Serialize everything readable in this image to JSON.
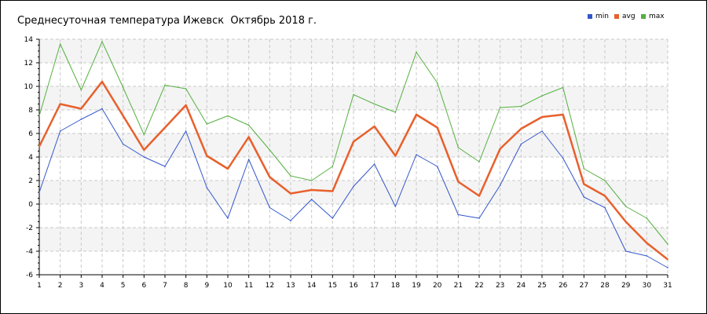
{
  "chart_data": {
    "type": "line",
    "title": "Среднесуточная температура Ижевск  Октябрь 2018 г.",
    "xlabel": "",
    "ylabel": "",
    "x": [
      1,
      2,
      3,
      4,
      5,
      6,
      7,
      8,
      9,
      10,
      11,
      12,
      13,
      14,
      15,
      16,
      17,
      18,
      19,
      20,
      21,
      22,
      23,
      24,
      25,
      26,
      27,
      28,
      29,
      30,
      31
    ],
    "ylim": [
      -6,
      14
    ],
    "yticks": [
      -6,
      -4,
      -2,
      0,
      2,
      4,
      6,
      8,
      10,
      12,
      14
    ],
    "grid": true,
    "legend_position": "top-right",
    "series": [
      {
        "name": "min",
        "color": "#3355cc",
        "values": [
          1.0,
          6.2,
          7.2,
          8.1,
          5.1,
          4.0,
          3.2,
          6.2,
          1.4,
          -1.2,
          3.8,
          -0.3,
          -1.4,
          0.4,
          -1.2,
          1.5,
          3.4,
          -0.2,
          4.2,
          3.2,
          -0.9,
          -1.2,
          1.6,
          5.1,
          6.2,
          3.9,
          0.6,
          -0.3,
          -4.0,
          -4.4,
          -5.4
        ]
      },
      {
        "name": "avg",
        "color": "#e8602c",
        "values": [
          4.9,
          8.5,
          8.1,
          10.4,
          7.5,
          4.6,
          6.5,
          8.4,
          4.1,
          3.0,
          5.7,
          2.3,
          0.9,
          1.2,
          1.1,
          5.3,
          6.6,
          4.1,
          7.6,
          6.5,
          1.9,
          0.7,
          4.7,
          6.4,
          7.4,
          7.6,
          1.7,
          0.7,
          -1.5,
          -3.3,
          -4.7
        ]
      },
      {
        "name": "max",
        "color": "#55b040",
        "values": [
          7.5,
          13.6,
          9.7,
          13.8,
          9.9,
          5.9,
          10.1,
          9.8,
          6.8,
          7.5,
          6.7,
          4.6,
          2.4,
          2.0,
          3.2,
          9.3,
          8.5,
          7.8,
          12.9,
          10.3,
          4.8,
          3.6,
          8.2,
          8.3,
          9.2,
          9.9,
          3.0,
          2.0,
          -0.2,
          -1.2,
          -3.4
        ]
      }
    ]
  }
}
